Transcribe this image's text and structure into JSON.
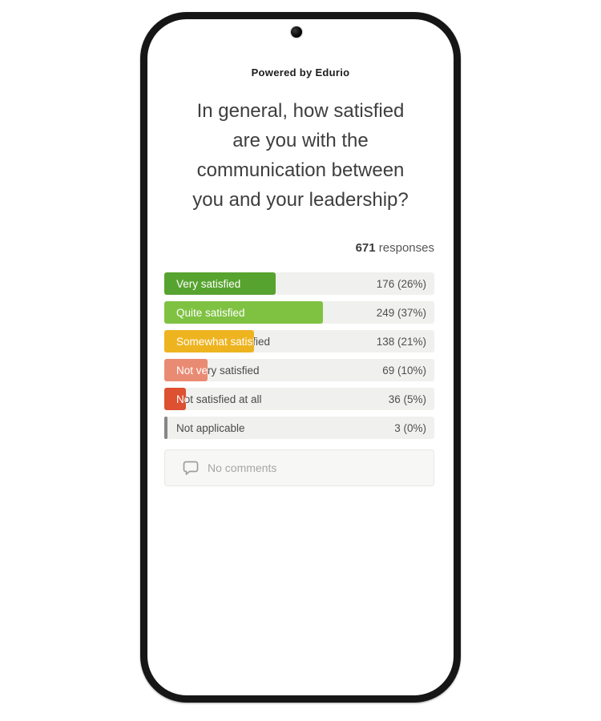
{
  "app": {
    "powered_by": "Powered by Edurio"
  },
  "survey": {
    "question": "In general, how satisfied are you with the communication between you and your leadership?",
    "question_lines": [
      "In general, how satisfied",
      "are you with the",
      "communication between",
      "you and your leadership?"
    ],
    "responses_count": "671",
    "responses_label": "responses"
  },
  "chart_data": {
    "type": "bar",
    "title": "In general, how satisfied are you with the communication between you and your leadership?",
    "total_responses": 671,
    "categories": [
      "Very satisfied",
      "Quite satisfied",
      "Somewhat satisfied",
      "Not very satisfied",
      "Not satisfied at all",
      "Not applicable"
    ],
    "values": [
      176,
      249,
      138,
      69,
      36,
      3
    ],
    "percentages": [
      26,
      37,
      21,
      10,
      5,
      0
    ],
    "value_labels": [
      "176 (26%)",
      "249 (37%)",
      "138 (21%)",
      "69 (10%)",
      "36 (5%)",
      "3 (0%)"
    ],
    "colors": [
      "#57a32f",
      "#7fc242",
      "#eeb420",
      "#e98b73",
      "#dd5031",
      "#868686"
    ],
    "xlabel": "",
    "ylabel": "",
    "legend": "none",
    "grid": false,
    "orientation": "horizontal"
  },
  "comments": {
    "empty_label": "No comments",
    "icon": "speech-bubble-icon"
  }
}
